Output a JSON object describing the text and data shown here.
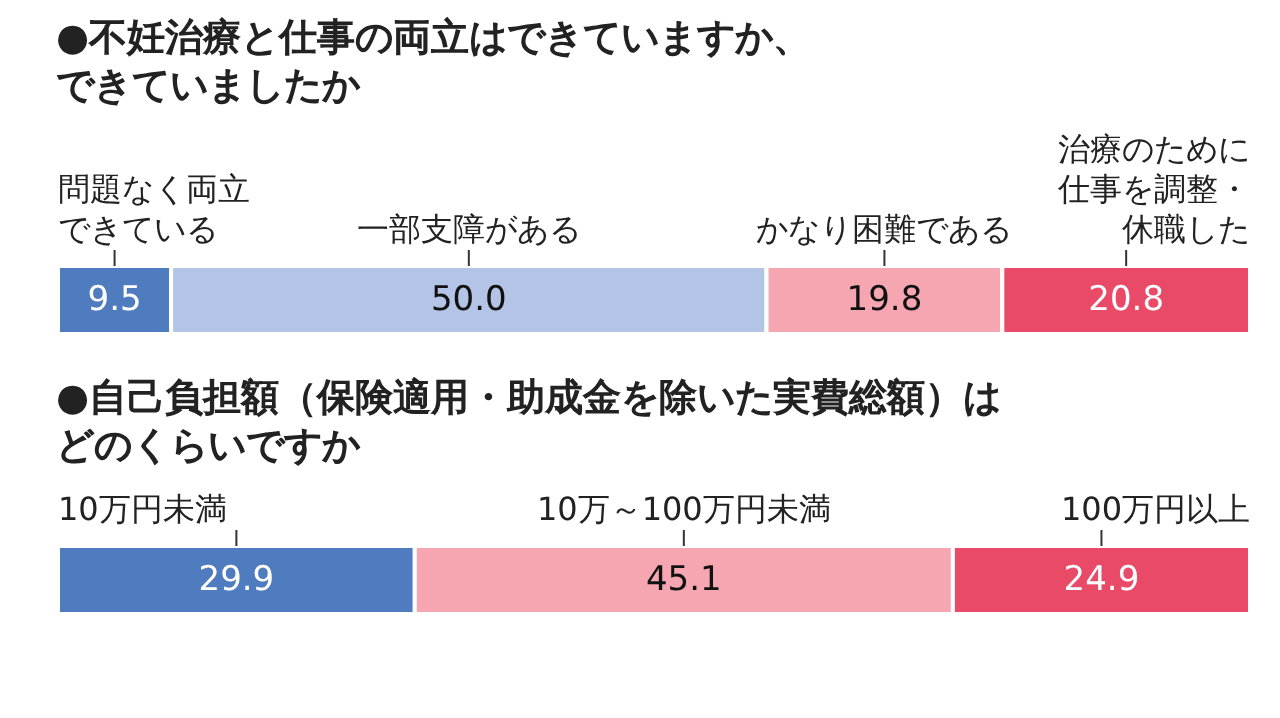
{
  "chart_data": [
    {
      "type": "bar",
      "title": "●不妊治療と仕事の両立はできていますか、できていましたか",
      "categories": [
        null
      ],
      "stacked": true,
      "orientation": "horizontal",
      "series": [
        {
          "name": "問題なく両立できている",
          "color": "#4f7bbf",
          "values": [
            9.5
          ],
          "value_labels": [
            "9.5"
          ]
        },
        {
          "name": "一部支障がある",
          "color": "#b4c4e6",
          "values": [
            50.0
          ],
          "value_labels": [
            "50.0"
          ]
        },
        {
          "name": "かなり困難である",
          "color": "#f5a6b1",
          "values": [
            19.8
          ],
          "value_labels": [
            "19.8"
          ]
        },
        {
          "name": "治療のために仕事を調整・休職した",
          "color": "#e94a67",
          "values": [
            20.8
          ],
          "value_labels": [
            "20.8"
          ]
        }
      ]
    },
    {
      "type": "bar",
      "title": "●自己負担額（保険適用・助成金を除いた実費総額）はどのくらいですか",
      "categories": [
        null
      ],
      "stacked": true,
      "orientation": "horizontal",
      "series": [
        {
          "name": "10万円未満",
          "color": "#4f7bbf",
          "values": [
            29.9
          ],
          "value_labels": [
            "29.9"
          ]
        },
        {
          "name": "10万～100万円未満",
          "color": "#f5a6b1",
          "values": [
            45.1
          ],
          "value_labels": [
            "45.1"
          ]
        },
        {
          "name": "100万円以上",
          "color": "#e94a67",
          "values": [
            24.9
          ],
          "value_labels": [
            "24.9"
          ]
        }
      ]
    }
  ]
}
